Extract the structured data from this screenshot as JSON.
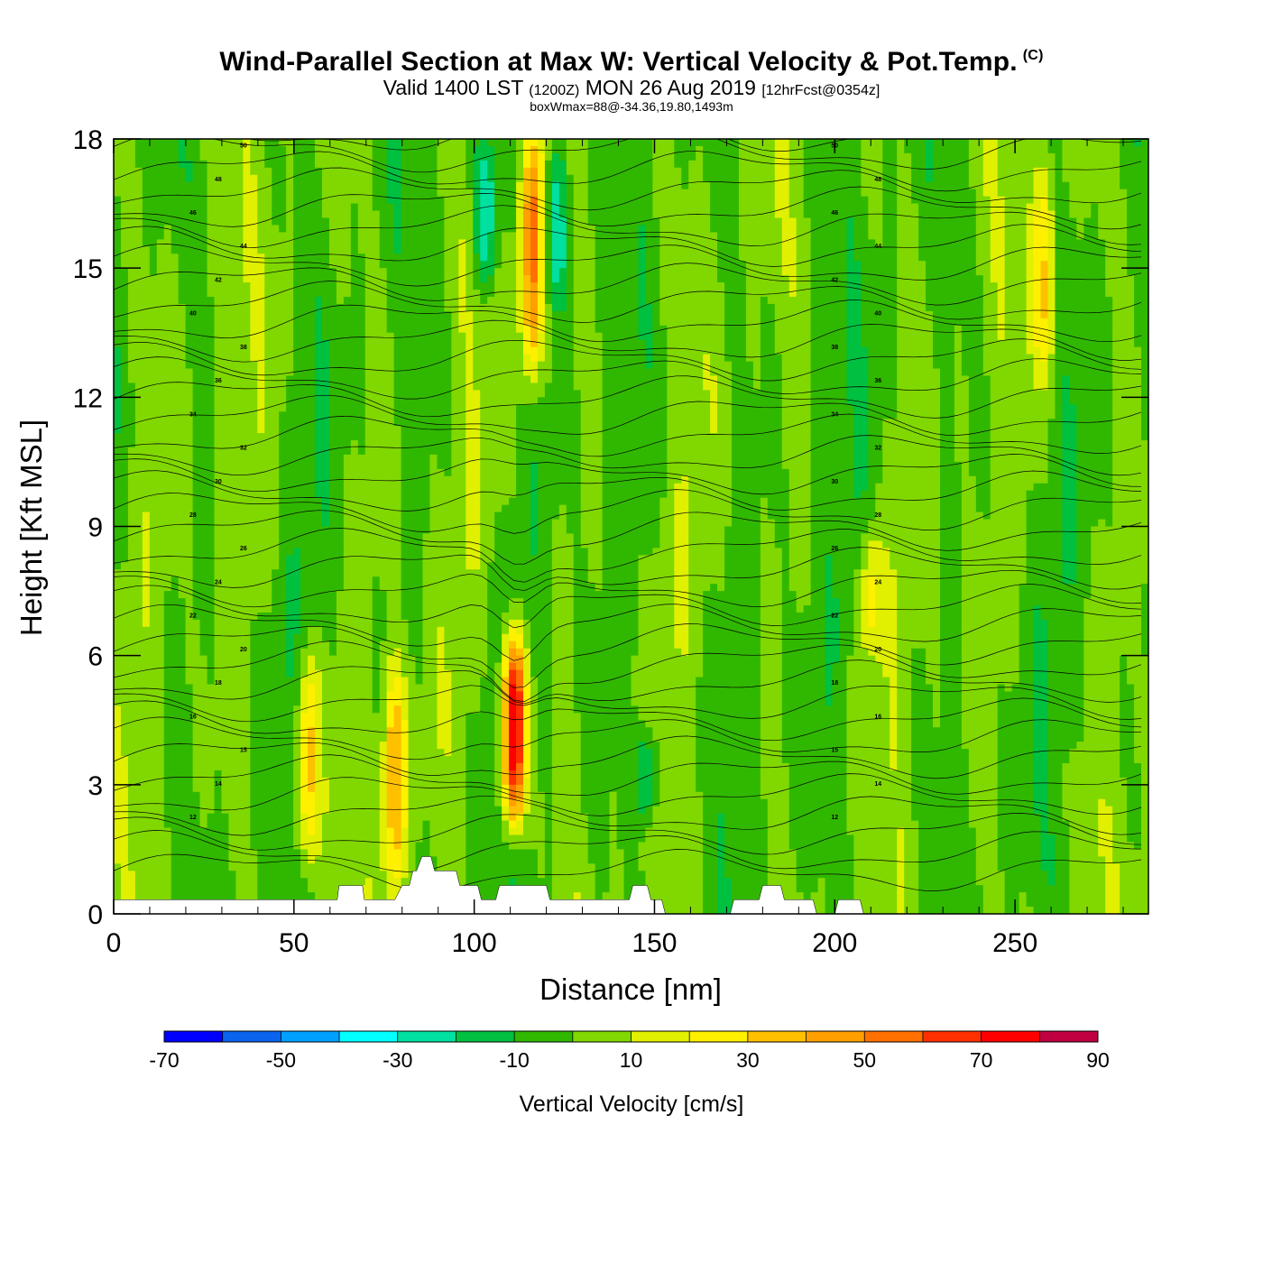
{
  "header": {
    "title": "Wind-Parallel Section at Max W: Vertical Velocity & Pot.Temp.",
    "copyright": "(C)",
    "valid_prefix": "Valid 1400 LST",
    "valid_utc": "(1200Z)",
    "valid_date": "MON 26 Aug 2019",
    "forecast": "[12hrFcst@0354z]",
    "box_info": "boxWmax=88@-34.36,19.80,1493m"
  },
  "chart_data": {
    "type": "heatmap",
    "title": "Wind-Parallel Section at Max W: Vertical Velocity & Pot.Temp.",
    "xlabel": "Distance [nm]",
    "ylabel": "Height [Kft MSL]",
    "xlim": [
      0,
      287
    ],
    "ylim": [
      0,
      18
    ],
    "x_ticks": [
      "0",
      "50",
      "100",
      "150",
      "200",
      "250"
    ],
    "x_tick_values": [
      0,
      50,
      100,
      150,
      200,
      250
    ],
    "y_ticks": [
      "0",
      "3",
      "6",
      "9",
      "12",
      "15",
      "18"
    ],
    "y_tick_values": [
      0,
      3,
      6,
      9,
      12,
      15,
      18
    ],
    "colorbar": {
      "title": "Vertical Velocity [cm/s]",
      "labels": [
        "-70",
        "-50",
        "-30",
        "-10",
        "10",
        "30",
        "50",
        "70",
        "90"
      ],
      "label_values": [
        -70,
        -50,
        -30,
        -10,
        10,
        30,
        50,
        70,
        90
      ],
      "min": -70,
      "max": 90,
      "colors": [
        "#0000ff",
        "#0a64f0",
        "#00a0ff",
        "#00ffff",
        "#00e0a0",
        "#00c040",
        "#30b800",
        "#80d800",
        "#e0f000",
        "#fff000",
        "#ffc000",
        "#ffa000",
        "#ff7000",
        "#ff3000",
        "#ff0000",
        "#c00040"
      ]
    },
    "w_max": 88,
    "updrafts": [
      {
        "x": 111,
        "bottom_kft": 2.0,
        "top_kft": 6.5,
        "peak_cms": 88
      },
      {
        "x": 116,
        "bottom_kft": 12.5,
        "top_kft": 18,
        "peak_cms": 55
      },
      {
        "x": 78,
        "bottom_kft": 0.3,
        "top_kft": 5.8,
        "peak_cms": 42
      },
      {
        "x": 54,
        "bottom_kft": 1.0,
        "top_kft": 6.0,
        "peak_cms": 36
      },
      {
        "x": 258,
        "bottom_kft": 12.5,
        "top_kft": 17.5,
        "peak_cms": 30
      },
      {
        "x": 210,
        "bottom_kft": 6.0,
        "top_kft": 9.0,
        "peak_cms": 22
      }
    ],
    "downdrafts": [
      {
        "x": 103,
        "bottom_kft": 14.5,
        "top_kft": 18,
        "peak_cms": -32
      },
      {
        "x": 123,
        "bottom_kft": 14.0,
        "top_kft": 18,
        "peak_cms": -30
      },
      {
        "x": 148,
        "bottom_kft": 2.0,
        "top_kft": 4.5,
        "peak_cms": -25
      }
    ],
    "theta_contour_labels": [
      "12",
      "14",
      "15",
      "16",
      "18",
      "20",
      "22",
      "24",
      "26",
      "28",
      "30",
      "32",
      "34",
      "36",
      "38",
      "40",
      "42",
      "44",
      "46",
      "48",
      "50"
    ],
    "terrain_kft": {
      "x": [
        0,
        62,
        62.5,
        69,
        69.5,
        78,
        80,
        82,
        83,
        84,
        85.5,
        88,
        89,
        95,
        96,
        101,
        102,
        106,
        107,
        120,
        121,
        143,
        144,
        148,
        149,
        152,
        153,
        171,
        172,
        179,
        180,
        185,
        186,
        194,
        195,
        200,
        201,
        207,
        208,
        287
      ],
      "y": [
        0.33,
        0.33,
        0.66,
        0.66,
        0.33,
        0.33,
        0.66,
        0.66,
        1.0,
        1.0,
        1.33,
        1.33,
        1.0,
        1.0,
        0.66,
        0.66,
        0.33,
        0.33,
        0.66,
        0.66,
        0.33,
        0.33,
        0.66,
        0.66,
        0.33,
        0.33,
        0.0,
        0.0,
        0.33,
        0.33,
        0.66,
        0.66,
        0.33,
        0.33,
        0.0,
        0.0,
        0.33,
        0.33,
        0.0,
        0.0
      ]
    }
  }
}
